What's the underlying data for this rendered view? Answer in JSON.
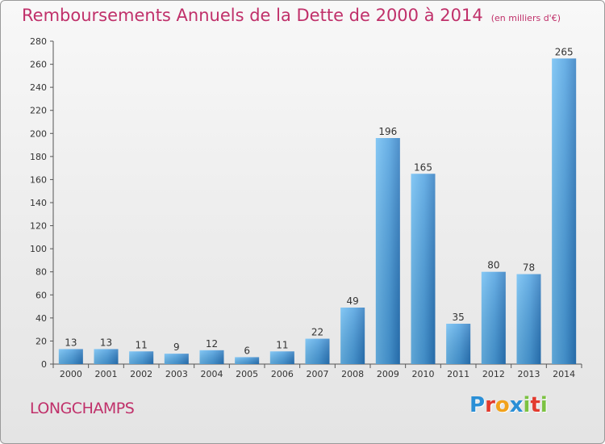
{
  "title": "Remboursements Annuels de la Dette de 2000 à 2014",
  "unit": "(en milliers d'€)",
  "commune": "LONGCHAMPS",
  "logo": {
    "text": "Proxiti",
    "letters": [
      {
        "ch": "P",
        "color": "#2a8fd6"
      },
      {
        "ch": "r",
        "color": "#e23a2e"
      },
      {
        "ch": "o",
        "color": "#f2a21b"
      },
      {
        "ch": "x",
        "color": "#2a8fd6"
      },
      {
        "ch": "i",
        "color": "#7cc242"
      },
      {
        "ch": "t",
        "color": "#e23a2e"
      },
      {
        "ch": "i",
        "color": "#7cc242"
      }
    ]
  },
  "colors": {
    "title": "#c0306a",
    "bar_light": "#5aaeea",
    "bar_dark": "#2f7fc4"
  },
  "chart_data": {
    "type": "bar",
    "categories": [
      "2000",
      "2001",
      "2002",
      "2003",
      "2004",
      "2005",
      "2006",
      "2007",
      "2008",
      "2009",
      "2010",
      "2011",
      "2012",
      "2013",
      "2014"
    ],
    "values": [
      13,
      13,
      11,
      9,
      12,
      6,
      11,
      22,
      49,
      196,
      165,
      35,
      80,
      78,
      265
    ],
    "ylim": [
      0,
      280
    ],
    "yticks": [
      0,
      20,
      40,
      60,
      80,
      100,
      120,
      140,
      160,
      180,
      200,
      220,
      240,
      260,
      280
    ],
    "grid": false,
    "data_labels": true
  }
}
